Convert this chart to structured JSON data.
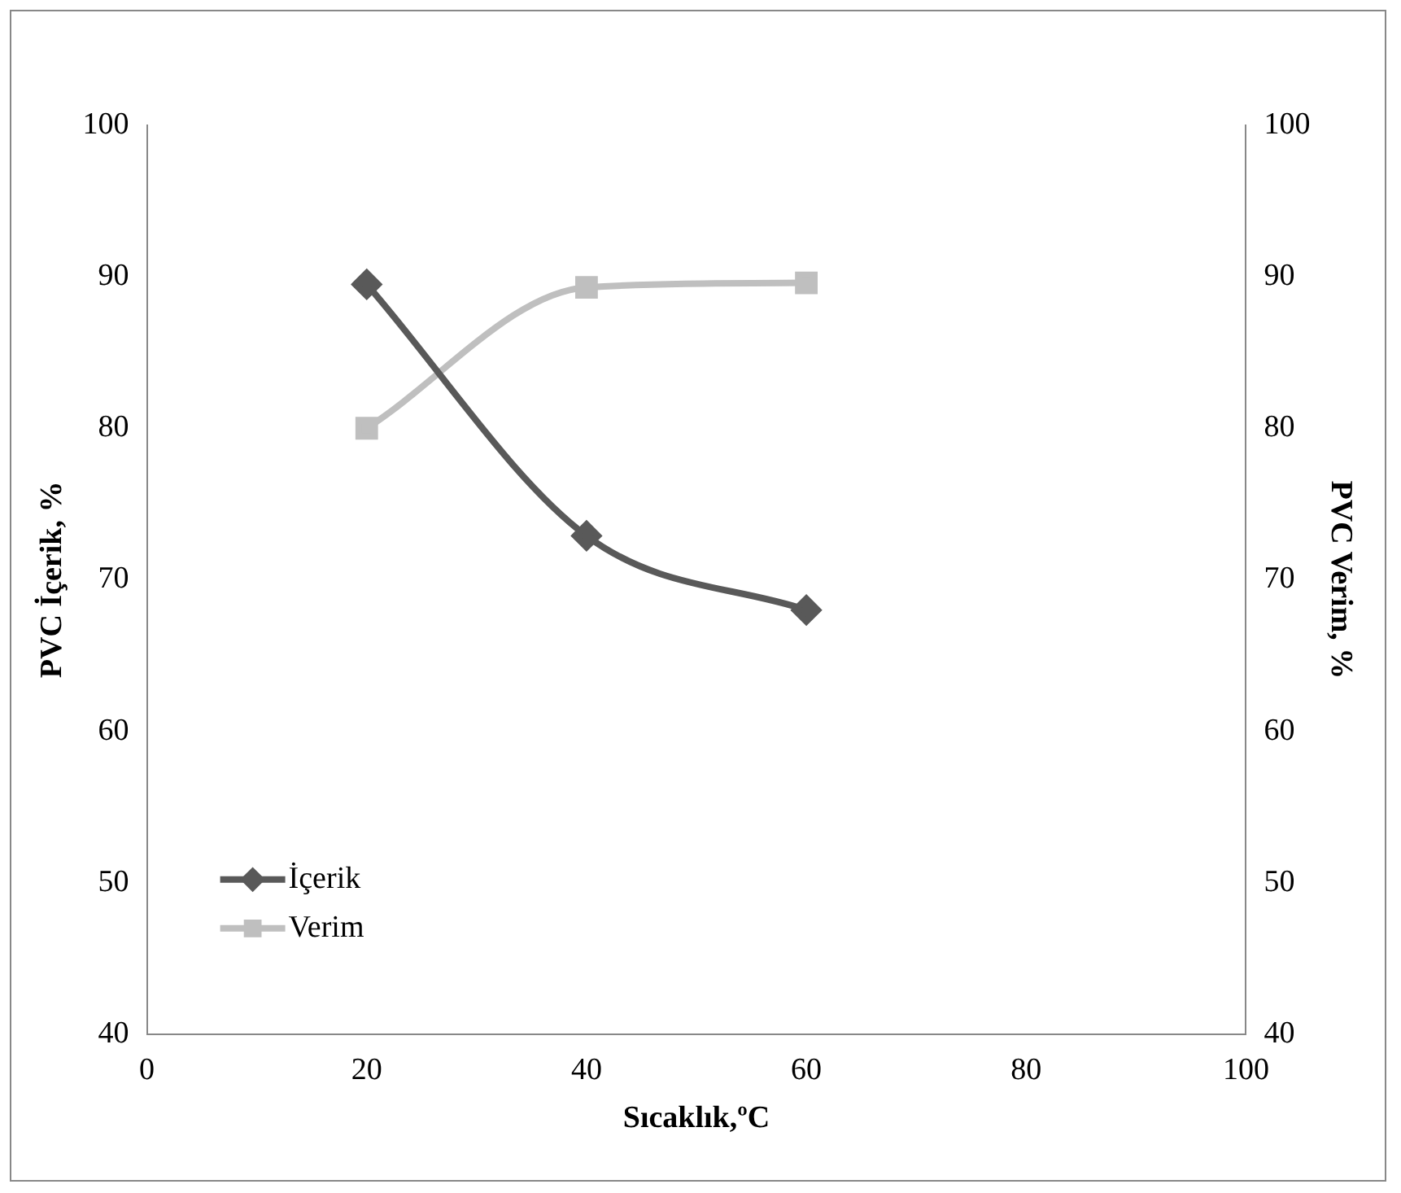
{
  "chart_data": {
    "type": "line",
    "xlabel": "Sıcaklık,ºC",
    "ylabel": "PVC İçerik, %",
    "y2label": "PVC Verim, %",
    "x": [
      20,
      40,
      60
    ],
    "series": [
      {
        "name": "İçerik",
        "color": "#595959",
        "values": [
          89.5,
          72.9,
          68.0
        ],
        "marker": "diamond"
      },
      {
        "name": "Verim",
        "color": "#bfbfbf",
        "values": [
          80.0,
          89.3,
          89.6
        ],
        "marker": "square",
        "axis": "y2"
      }
    ],
    "xlim": [
      0,
      100
    ],
    "xticks": [
      0,
      20,
      40,
      60,
      80,
      100
    ],
    "ylim": [
      40,
      100
    ],
    "yticks": [
      40,
      50,
      60,
      70,
      80,
      90,
      100
    ],
    "y2lim": [
      40,
      100
    ],
    "y2ticks": [
      40,
      50,
      60,
      70,
      80,
      90,
      100
    ],
    "grid": false,
    "legend": "bottom left",
    "line_style": "solid"
  }
}
